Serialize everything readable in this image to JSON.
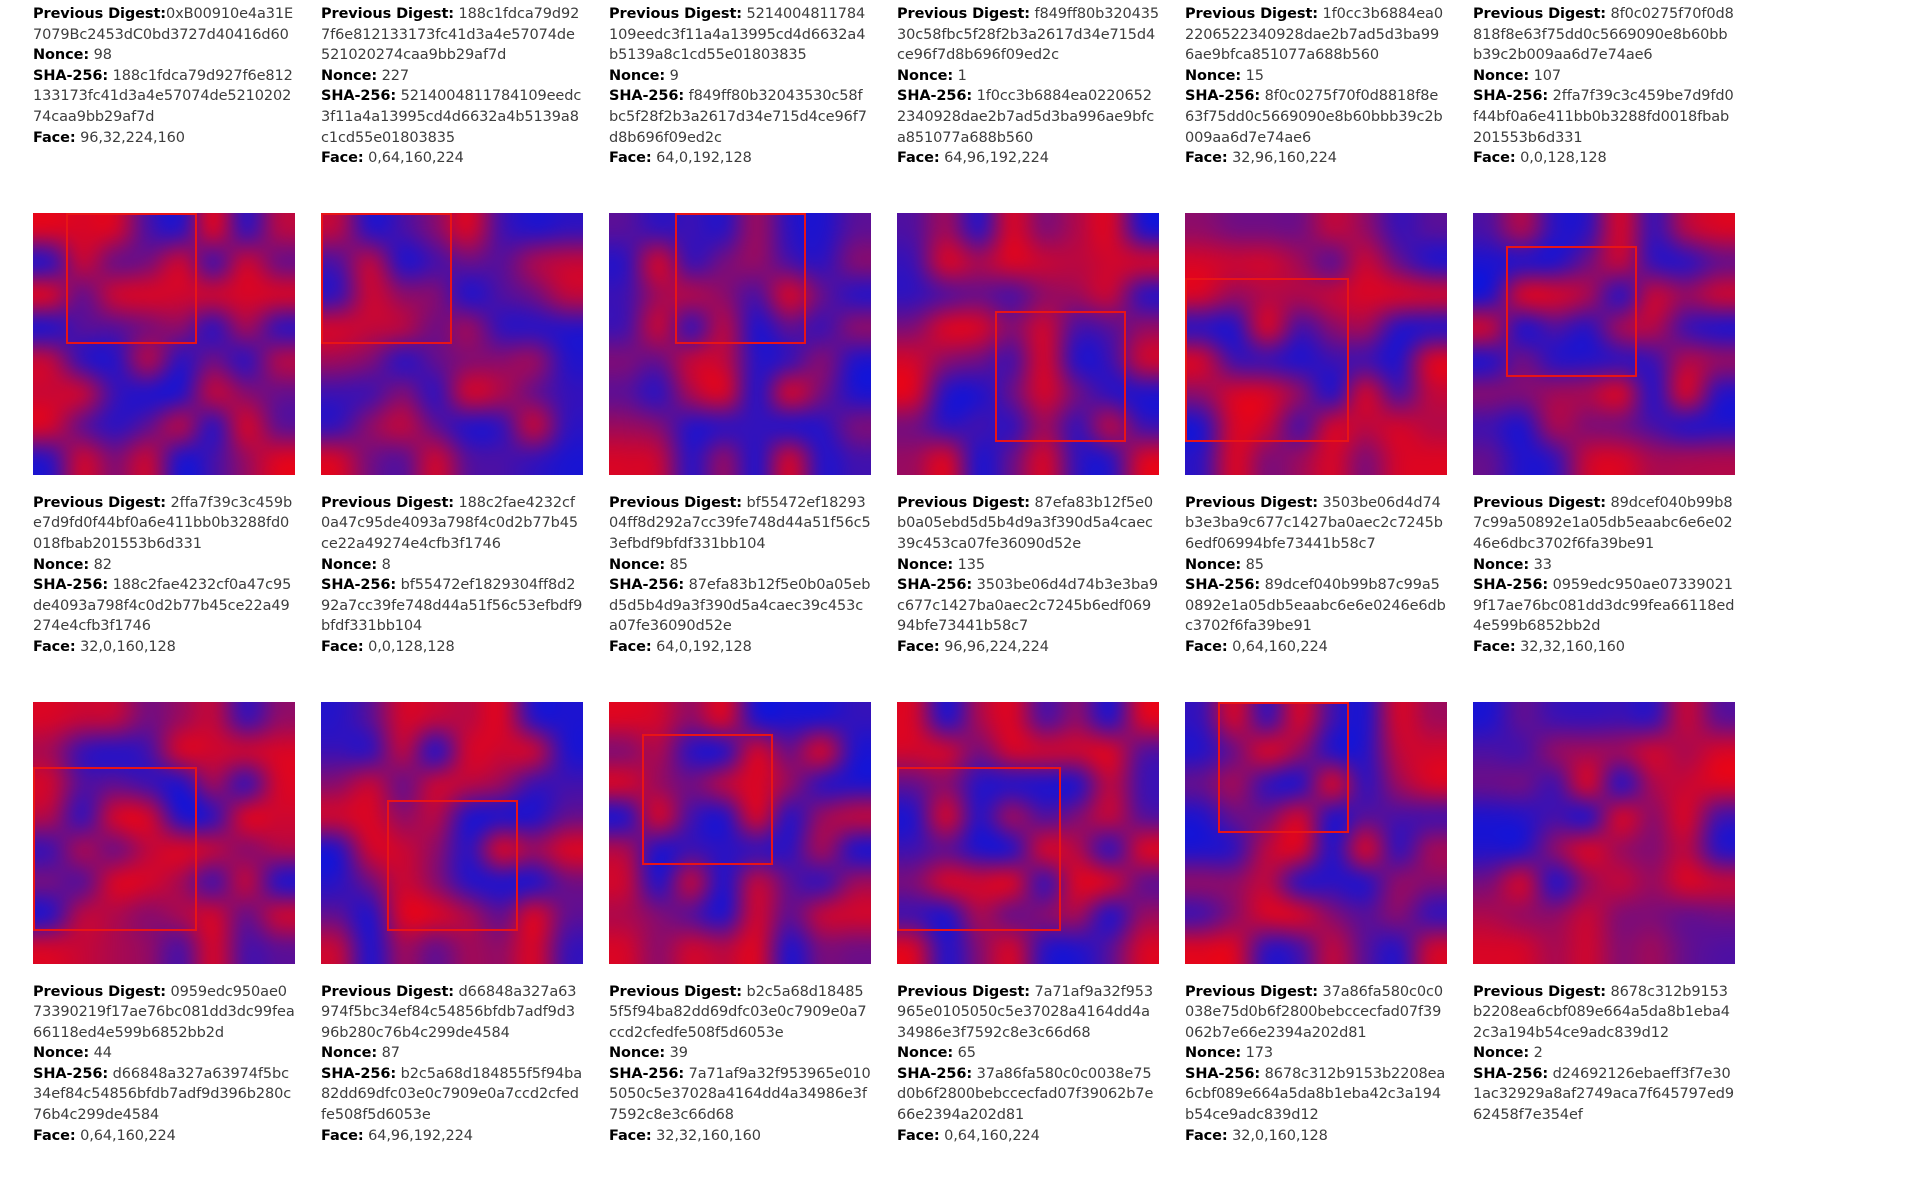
{
  "page": {
    "background": "#ffffff",
    "kind": "blockchain-mining-visualization-grid"
  },
  "field_labels": {
    "prev": "Previous Digest:",
    "nonce": "Nonce:",
    "sha": "SHA-256:",
    "face": "Face:"
  },
  "image_style": {
    "rect_color": "#e81417",
    "red_color_rgb": [
      230,
      4,
      25
    ],
    "blue_color_rgb": [
      20,
      20,
      215
    ],
    "grid_cells": 8,
    "coord_scale": 256
  },
  "blocks": [
    {
      "prev_digest": "0xB00910e4a31E7079Bc2453dC0bd3727d40416d60",
      "space_after_prev_label": false,
      "nonce": "98",
      "sha256": "188c1fdca79d927f6e812133173fc41d3a4e57074de521020274caa9bb29af7d",
      "face": "96,32,224,160",
      "has_image": false,
      "seed": 0
    },
    {
      "prev_digest": "188c1fdca79d927f6e812133173fc41d3a4e57074de521020274caa9bb29af7d",
      "space_after_prev_label": true,
      "nonce": "227",
      "sha256": "5214004811784109eedc3f11a4a13995cd4d6632a4b5139a8c1cd55e01803835",
      "face": "0,64,160,224",
      "has_image": false,
      "seed": 0
    },
    {
      "prev_digest": "5214004811784109eedc3f11a4a13995cd4d6632a4b5139a8c1cd55e01803835",
      "space_after_prev_label": true,
      "nonce": "9",
      "sha256": "f849ff80b32043530c58fbc5f28f2b3a2617d34e715d4ce96f7d8b696f09ed2c",
      "face": "64,0,192,128",
      "has_image": false,
      "seed": 0
    },
    {
      "prev_digest": "f849ff80b32043530c58fbc5f28f2b3a2617d34e715d4ce96f7d8b696f09ed2c",
      "space_after_prev_label": true,
      "nonce": "1",
      "sha256": "1f0cc3b6884ea02206522340928dae2b7ad5d3ba996ae9bfca851077a688b560",
      "face": "64,96,192,224",
      "has_image": false,
      "seed": 0
    },
    {
      "prev_digest": "1f0cc3b6884ea02206522340928dae2b7ad5d3ba996ae9bfca851077a688b560",
      "space_after_prev_label": true,
      "nonce": "15",
      "sha256": "8f0c0275f70f0d8818f8e63f75dd0c5669090e8b60bbb39c2b009aa6d7e74ae6",
      "face": "32,96,160,224",
      "has_image": false,
      "seed": 0
    },
    {
      "prev_digest": "8f0c0275f70f0d8818f8e63f75dd0c5669090e8b60bbb39c2b009aa6d7e74ae6",
      "space_after_prev_label": true,
      "nonce": "107",
      "sha256": "2ffa7f39c3c459be7d9fd0f44bf0a6e411bb0b3288fd0018fbab201553b6d331",
      "face": "0,0,128,128",
      "has_image": false,
      "seed": 0
    },
    {
      "prev_digest": "2ffa7f39c3c459be7d9fd0f44bf0a6e411bb0b3288fd0018fbab201553b6d331",
      "space_after_prev_label": true,
      "nonce": "82",
      "sha256": "188c2fae4232cf0a47c95de4093a798f4c0d2b77b45ce22a49274e4cfb3f1746",
      "face": "32,0,160,128",
      "has_image": true,
      "seed": 9011
    },
    {
      "prev_digest": "188c2fae4232cf0a47c95de4093a798f4c0d2b77b45ce22a49274e4cfb3f1746",
      "space_after_prev_label": true,
      "nonce": "8",
      "sha256": "bf55472ef1829304ff8d292a7cc39fe748d44a51f56c53efbdf9bfdf331bb104",
      "face": "0,0,128,128",
      "has_image": true,
      "seed": 4203
    },
    {
      "prev_digest": "bf55472ef1829304ff8d292a7cc39fe748d44a51f56c53efbdf9bfdf331bb104",
      "space_after_prev_label": true,
      "nonce": "85",
      "sha256": "87efa83b12f5e0b0a05ebd5d5b4d9a3f390d5a4caec39c453ca07fe36090d52e",
      "face": "64,0,192,128",
      "has_image": true,
      "seed": 7717
    },
    {
      "prev_digest": "87efa83b12f5e0b0a05ebd5d5b4d9a3f390d5a4caec39c453ca07fe36090d52e",
      "space_after_prev_label": true,
      "nonce": "135",
      "sha256": "3503be06d4d74b3e3ba9c677c1427ba0aec2c7245b6edf06994bfe73441b58c7",
      "face": "96,96,224,224",
      "has_image": true,
      "seed": 5150
    },
    {
      "prev_digest": "3503be06d4d74b3e3ba9c677c1427ba0aec2c7245b6edf06994bfe73441b58c7",
      "space_after_prev_label": true,
      "nonce": "85",
      "sha256": "89dcef040b99b87c99a50892e1a05db5eaabc6e6e0246e6dbc3702f6fa39be91",
      "face": "0,64,160,224",
      "has_image": true,
      "seed": 6281
    },
    {
      "prev_digest": "89dcef040b99b87c99a50892e1a05db5eaabc6e6e0246e6dbc3702f6fa39be91",
      "space_after_prev_label": true,
      "nonce": "33",
      "sha256": "0959edc950ae073390219f17ae76bc081dd3dc99fea66118ed4e599b6852bb2d",
      "face": "32,32,160,160",
      "has_image": true,
      "seed": 3390
    },
    {
      "prev_digest": "0959edc950ae073390219f17ae76bc081dd3dc99fea66118ed4e599b6852bb2d",
      "space_after_prev_label": true,
      "nonce": "44",
      "sha256": "d66848a327a63974f5bc34ef84c54856bfdb7adf9d396b280c76b4c299de4584",
      "face": "0,64,160,224",
      "has_image": true,
      "seed": 8844
    },
    {
      "prev_digest": "d66848a327a63974f5bc34ef84c54856bfdb7adf9d396b280c76b4c299de4584",
      "space_after_prev_label": true,
      "nonce": "87",
      "sha256": "b2c5a68d184855f5f94ba82dd69dfc03e0c7909e0a7ccd2cfedfe508f5d6053e",
      "face": "64,96,192,224",
      "has_image": true,
      "seed": 1287
    },
    {
      "prev_digest": "b2c5a68d184855f5f94ba82dd69dfc03e0c7909e0a7ccd2cfedfe508f5d6053e",
      "space_after_prev_label": true,
      "nonce": "39",
      "sha256": "7a71af9a32f953965e0105050c5e37028a4164dd4a34986e3f7592c8e3c66d68",
      "face": "32,32,160,160",
      "has_image": true,
      "seed": 2439
    },
    {
      "prev_digest": "7a71af9a32f953965e0105050c5e37028a4164dd4a34986e3f7592c8e3c66d68",
      "space_after_prev_label": true,
      "nonce": "65",
      "sha256": "37a86fa580c0c0038e75d0b6f2800bebccecfad07f39062b7e66e2394a202d81",
      "face": "0,64,160,224",
      "has_image": true,
      "seed": 9365
    },
    {
      "prev_digest": "37a86fa580c0c0038e75d0b6f2800bebccecfad07f39062b7e66e2394a202d81",
      "space_after_prev_label": true,
      "nonce": "173",
      "sha256": "8678c312b9153b2208ea6cbf089e664a5da8b1eba42c3a194b54ce9adc839d12",
      "face": "32,0,160,128",
      "has_image": true,
      "seed": 4173
    },
    {
      "prev_digest": "8678c312b9153b2208ea6cbf089e664a5da8b1eba42c3a194b54ce9adc839d12",
      "space_after_prev_label": true,
      "nonce": "2",
      "sha256": "d24692126ebaeff3f7e301ac32929a8af2749aca7f645797ed962458f7e354ef",
      "face": null,
      "has_image": true,
      "seed": 5902
    }
  ]
}
